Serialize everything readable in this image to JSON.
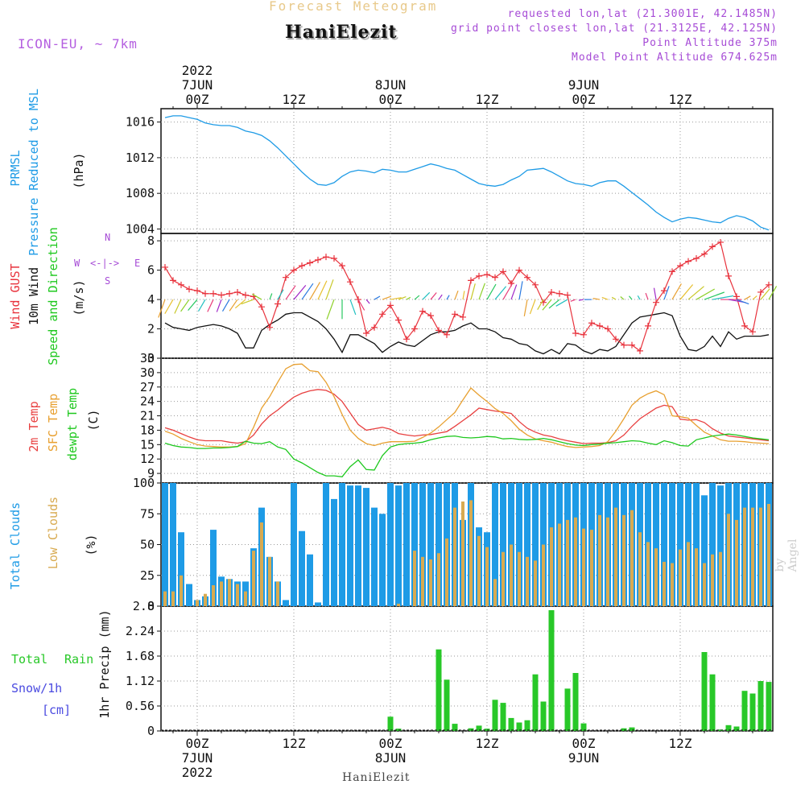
{
  "header": {
    "subtitle": "Forecast Meteogram",
    "title": "HaniElezit",
    "model": "ICON-EU, ~ 7km",
    "requested": "requested lon,lat (21.3001E, 42.1485N)",
    "closest": "grid point closest lon,lat (21.3125E, 42.125N)",
    "point_alt": "Point Altitude 375m",
    "model_alt": "Model Point Altitude 674.625m"
  },
  "footer": {
    "station": "HaniElezit",
    "byline": "by Angel"
  },
  "time_axis": {
    "hours_total": 76,
    "start_offset_hours": -4,
    "major_ticks": [
      {
        "h": 0,
        "top": [
          "2022",
          "7JUN",
          "00Z"
        ],
        "bottom": [
          "00Z",
          "7JUN",
          "2022"
        ]
      },
      {
        "h": 12,
        "top": [
          "12Z"
        ],
        "bottom": [
          "12Z"
        ]
      },
      {
        "h": 24,
        "top": [
          "8JUN",
          "00Z"
        ],
        "bottom": [
          "00Z",
          "8JUN"
        ]
      },
      {
        "h": 36,
        "top": [
          "12Z"
        ],
        "bottom": [
          "12Z"
        ]
      },
      {
        "h": 48,
        "top": [
          "9JUN",
          "00Z"
        ],
        "bottom": [
          "00Z",
          "9JUN"
        ]
      },
      {
        "h": 60,
        "top": [
          "12Z"
        ],
        "bottom": [
          "12Z"
        ]
      }
    ]
  },
  "panel_labels": {
    "pressure": [
      "PRMSL",
      "Pressure Reduced to MSL",
      "(hPa)"
    ],
    "wind": [
      "Wind GUST",
      "10m Wind",
      "Speed and Direction",
      "(m/s)"
    ],
    "compass": {
      "n": "N",
      "s": "S",
      "w": "W",
      "e": "E",
      "arrows": "<-|->"
    },
    "temp": [
      "2m Temp",
      "SFC Temp",
      "dewpt Temp",
      "(C)"
    ],
    "clouds": [
      "Total Clouds",
      "Low Clouds",
      "(%)"
    ],
    "precip": [
      "Total",
      "Rain",
      "Snow/1h",
      "[cm]",
      "1hr Precip (mm)"
    ]
  },
  "colors": {
    "pressure": "#1e9be6",
    "gust": "#e8323c",
    "wind": "#111111",
    "temp2m": "#e84040",
    "sfc": "#e8a030",
    "dewpt": "#1ec81e",
    "total_clouds": "#1e9be6",
    "low_clouds": "#d8aa50",
    "rain": "#28c828",
    "snow": "#4a4ae0",
    "compass": "#a64bd6"
  },
  "chart_data": [
    {
      "type": "line",
      "panel": "pressure",
      "title": "PRMSL Pressure Reduced to MSL",
      "ylabel": "(hPa)",
      "ylim": [
        1003.5,
        1017.5
      ],
      "yticks": [
        1004,
        1008,
        1012,
        1016
      ],
      "grid": true,
      "series": [
        {
          "name": "PRMSL",
          "values": [
            1016.5,
            1016.7,
            1016.7,
            1016.5,
            1016.3,
            1015.9,
            1015.7,
            1015.6,
            1015.6,
            1015.4,
            1015.0,
            1014.8,
            1014.5,
            1013.9,
            1013.1,
            1012.2,
            1011.3,
            1010.4,
            1009.6,
            1009.0,
            1008.9,
            1009.2,
            1009.9,
            1010.4,
            1010.6,
            1010.5,
            1010.3,
            1010.7,
            1010.6,
            1010.4,
            1010.4,
            1010.7,
            1011.0,
            1011.3,
            1011.1,
            1010.8,
            1010.6,
            1010.1,
            1009.6,
            1009.1,
            1008.9,
            1008.8,
            1009.0,
            1009.5,
            1009.9,
            1010.6,
            1010.7,
            1010.8,
            1010.4,
            1009.9,
            1009.4,
            1009.1,
            1009.0,
            1008.8,
            1009.2,
            1009.4,
            1009.4,
            1008.8,
            1008.1,
            1007.4,
            1006.7,
            1005.9,
            1005.3,
            1004.8,
            1005.1,
            1005.3,
            1005.2,
            1005.0,
            1004.8,
            1004.7,
            1005.2,
            1005.5,
            1005.3,
            1004.9,
            1004.2,
            1003.9
          ]
        }
      ]
    },
    {
      "type": "line",
      "panel": "wind",
      "title": "Wind GUST / 10m Wind Speed and Direction",
      "ylabel": "(m/s)",
      "ylim": [
        0,
        8.5
      ],
      "yticks": [
        0,
        2,
        4,
        6,
        8
      ],
      "grid": true,
      "series": [
        {
          "name": "Wind GUST",
          "values": [
            6.2,
            5.3,
            5.0,
            4.7,
            4.6,
            4.4,
            4.4,
            4.3,
            4.4,
            4.5,
            4.3,
            4.2,
            3.5,
            2.1,
            3.7,
            5.5,
            6.0,
            6.3,
            6.5,
            6.7,
            6.9,
            6.8,
            6.3,
            5.2,
            4.0,
            1.7,
            2.1,
            3.0,
            3.6,
            2.6,
            1.3,
            2.0,
            3.2,
            2.9,
            1.9,
            1.6,
            3.0,
            2.8,
            5.3,
            5.6,
            5.7,
            5.5,
            5.9,
            5.1,
            6.0,
            5.5,
            5.0,
            3.8,
            4.5,
            4.4,
            4.3,
            1.7,
            1.6,
            2.4,
            2.2,
            2.0,
            1.3,
            0.9,
            0.9,
            0.5,
            2.2,
            3.8,
            4.6,
            5.9,
            6.3,
            6.6,
            6.8,
            7.1,
            7.6,
            7.9,
            5.6,
            4.2,
            2.2,
            1.8,
            4.5,
            5.0
          ]
        },
        {
          "name": "10m Wind",
          "values": [
            2.4,
            2.1,
            2.0,
            1.9,
            2.1,
            2.2,
            2.3,
            2.2,
            2.0,
            1.7,
            0.7,
            0.7,
            1.9,
            2.3,
            2.6,
            3.0,
            3.1,
            3.1,
            2.8,
            2.5,
            2.0,
            1.3,
            0.4,
            1.6,
            1.6,
            1.3,
            1.0,
            0.4,
            0.8,
            1.1,
            0.9,
            0.8,
            1.2,
            1.6,
            1.8,
            1.8,
            1.9,
            2.2,
            2.4,
            2.0,
            2.0,
            1.8,
            1.4,
            1.3,
            1.0,
            0.9,
            0.5,
            0.3,
            0.6,
            0.3,
            1.0,
            0.9,
            0.5,
            0.3,
            0.6,
            0.5,
            0.8,
            1.6,
            2.4,
            2.8,
            2.9,
            3.0,
            3.1,
            2.9,
            1.5,
            0.6,
            0.5,
            0.8,
            1.5,
            0.8,
            1.8,
            1.3,
            1.5,
            1.5,
            1.5,
            1.6
          ]
        }
      ]
    },
    {
      "type": "line",
      "panel": "temp",
      "title": "2m Temp / SFC Temp / dewpt Temp",
      "ylabel": "(C)",
      "ylim": [
        7,
        33
      ],
      "yticks": [
        9,
        12,
        15,
        18,
        21,
        24,
        27,
        30,
        33
      ],
      "grid": true,
      "series": [
        {
          "name": "2m Temp",
          "values": [
            18.5,
            18.0,
            17.3,
            16.6,
            16.0,
            15.8,
            15.8,
            15.8,
            15.5,
            15.3,
            15.6,
            17.0,
            19.3,
            21.0,
            22.2,
            23.6,
            24.9,
            25.7,
            26.2,
            26.5,
            26.3,
            25.5,
            24.0,
            21.6,
            19.2,
            18.0,
            18.3,
            18.6,
            18.2,
            17.3,
            17.0,
            16.8,
            17.0,
            17.1,
            17.4,
            17.7,
            18.8,
            20.0,
            21.2,
            22.6,
            22.3,
            22.0,
            21.8,
            21.5,
            19.8,
            18.4,
            17.6,
            17.0,
            16.7,
            16.2,
            15.8,
            15.5,
            15.2,
            15.3,
            15.3,
            15.4,
            15.8,
            17.0,
            18.8,
            20.4,
            21.5,
            22.6,
            23.2,
            22.9,
            20.3,
            20.1,
            20.2,
            19.6,
            18.3,
            17.4,
            16.8,
            16.6,
            16.4,
            16.2,
            16.0,
            15.8
          ]
        },
        {
          "name": "SFC Temp",
          "values": [
            17.8,
            17.2,
            16.3,
            15.6,
            15.0,
            14.7,
            14.6,
            14.5,
            14.5,
            14.6,
            15.2,
            18.6,
            22.6,
            25.0,
            28.0,
            30.8,
            31.7,
            31.8,
            30.4,
            30.2,
            28.0,
            25.0,
            21.3,
            18.0,
            16.3,
            15.2,
            14.8,
            15.3,
            15.6,
            15.6,
            15.6,
            15.7,
            16.5,
            17.4,
            18.7,
            20.2,
            21.7,
            24.3,
            26.8,
            25.3,
            24.0,
            22.5,
            21.5,
            20.0,
            18.2,
            17.0,
            16.2,
            15.8,
            15.5,
            15.0,
            14.6,
            14.4,
            14.5,
            14.6,
            14.8,
            15.6,
            17.8,
            20.4,
            23.2,
            24.7,
            25.6,
            26.2,
            25.4,
            21.0,
            20.8,
            20.5,
            19.0,
            17.6,
            16.8,
            16.0,
            15.7,
            15.7,
            15.6,
            15.4,
            15.3,
            15.2
          ]
        },
        {
          "name": "dewpt Temp",
          "values": [
            15.3,
            14.8,
            14.5,
            14.4,
            14.2,
            14.2,
            14.3,
            14.3,
            14.4,
            14.6,
            15.7,
            15.3,
            15.2,
            15.6,
            14.5,
            14.0,
            12.0,
            11.2,
            10.2,
            9.2,
            8.5,
            8.5,
            8.3,
            10.4,
            11.8,
            9.8,
            9.7,
            12.7,
            14.5,
            15.0,
            15.2,
            15.3,
            15.5,
            16.0,
            16.4,
            16.7,
            16.8,
            16.5,
            16.4,
            16.5,
            16.7,
            16.6,
            16.2,
            16.3,
            16.1,
            16.0,
            16.1,
            16.3,
            16.0,
            15.6,
            15.2,
            14.9,
            14.8,
            15.0,
            15.1,
            15.3,
            15.4,
            15.6,
            15.8,
            15.7,
            15.3,
            15.0,
            15.8,
            15.4,
            14.8,
            14.7,
            16.0,
            16.4,
            16.8,
            17.0,
            17.2,
            17.0,
            16.7,
            16.4,
            16.2,
            16.0
          ]
        }
      ]
    },
    {
      "type": "bar",
      "panel": "clouds",
      "title": "Total Clouds / Low Clouds",
      "ylabel": "(%)",
      "ylim": [
        0,
        100
      ],
      "yticks": [
        0,
        25,
        50,
        75,
        100
      ],
      "grid": true,
      "series": [
        {
          "name": "Total Clouds",
          "values": [
            100,
            100,
            60,
            18,
            5,
            8,
            62,
            24,
            22,
            20,
            20,
            47,
            80,
            40,
            20,
            5,
            100,
            61,
            42,
            3,
            100,
            87,
            100,
            98,
            98,
            96,
            80,
            75,
            100,
            98,
            100,
            100,
            100,
            100,
            100,
            100,
            100,
            70,
            100,
            64,
            60,
            100,
            100,
            100,
            100,
            100,
            100,
            100,
            100,
            100,
            100,
            100,
            100,
            100,
            100,
            100,
            100,
            100,
            100,
            100,
            100,
            100,
            100,
            100,
            100,
            100,
            100,
            90,
            100,
            98,
            100,
            100,
            100,
            100,
            100,
            100
          ]
        },
        {
          "name": "Low Clouds",
          "values": [
            12,
            12,
            25,
            0,
            5,
            10,
            17,
            20,
            22,
            18,
            12,
            45,
            68,
            40,
            20,
            0,
            0,
            0,
            0,
            0,
            0,
            0,
            0,
            0,
            0,
            0,
            0,
            0,
            0,
            2,
            0,
            45,
            40,
            38,
            43,
            55,
            80,
            85,
            86,
            57,
            48,
            22,
            44,
            50,
            44,
            40,
            37,
            50,
            64,
            67,
            70,
            72,
            63,
            62,
            74,
            72,
            80,
            74,
            78,
            60,
            52,
            47,
            36,
            35,
            46,
            52,
            47,
            35,
            42,
            44,
            75,
            70,
            80,
            80,
            80,
            83
          ]
        }
      ]
    },
    {
      "type": "bar",
      "panel": "precip",
      "title": "1hr Precip (mm)",
      "ylabel": "1hr Precip (mm)",
      "ylim": [
        0,
        2.8
      ],
      "yticks": [
        0,
        0.56,
        1.12,
        1.68,
        2.24,
        2.8
      ],
      "grid": true,
      "series": [
        {
          "name": "Total Rain",
          "values": [
            0,
            0,
            0,
            0,
            0,
            0,
            0,
            0,
            0,
            0,
            0,
            0,
            0,
            0,
            0,
            0,
            0,
            0,
            0,
            0,
            0,
            0,
            0,
            0,
            0,
            0,
            0,
            0,
            0.32,
            0.05,
            0,
            0,
            0,
            0,
            1.83,
            1.15,
            0.16,
            0,
            0.06,
            0.12,
            0.05,
            0.7,
            0.63,
            0.29,
            0.19,
            0.24,
            1.27,
            0.66,
            2.71,
            0,
            0.95,
            1.3,
            0.17,
            0,
            0,
            0,
            0,
            0.06,
            0.08,
            0,
            0,
            0,
            0,
            0,
            0,
            0,
            0,
            1.77,
            1.27,
            0.03,
            0.13,
            0.1,
            0.9,
            0.84,
            1.12,
            1.1
          ]
        },
        {
          "name": "Snow/1h",
          "values": []
        }
      ]
    }
  ]
}
